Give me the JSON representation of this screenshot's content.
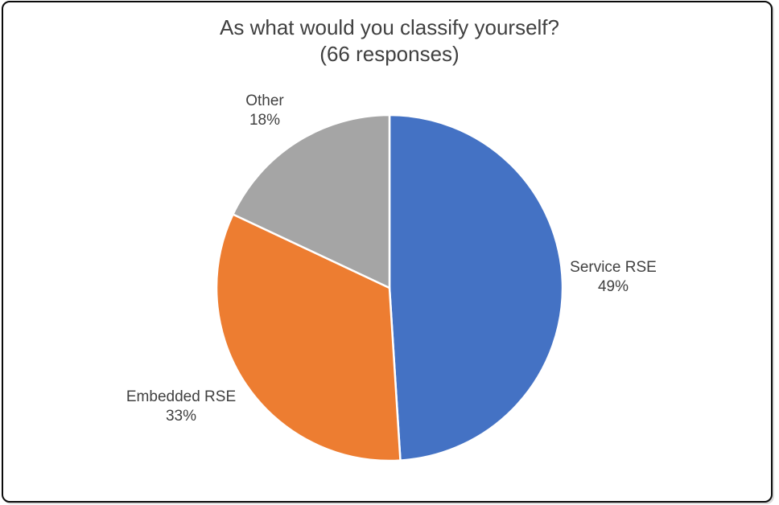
{
  "frame": {
    "background_color": "#ffffff",
    "border_color": "#0a0a0a"
  },
  "chart_data": {
    "type": "pie",
    "title": "As what would you classify yourself?",
    "subtitle": "(66 responses)",
    "total_responses": 66,
    "start_angle_deg": 0,
    "direction": "clockwise",
    "slice_border_color": "#ffffff",
    "text_color": "#404040",
    "legend_position": "none",
    "labels_outside": true,
    "slices": [
      {
        "label": "Service RSE",
        "value_label": "49%",
        "value": 49,
        "color": "#4472C4"
      },
      {
        "label": "Embedded RSE",
        "value_label": "33%",
        "value": 33,
        "color": "#ED7D31"
      },
      {
        "label": "Other",
        "value_label": "18%",
        "value": 18,
        "color": "#A5A5A5"
      }
    ]
  }
}
